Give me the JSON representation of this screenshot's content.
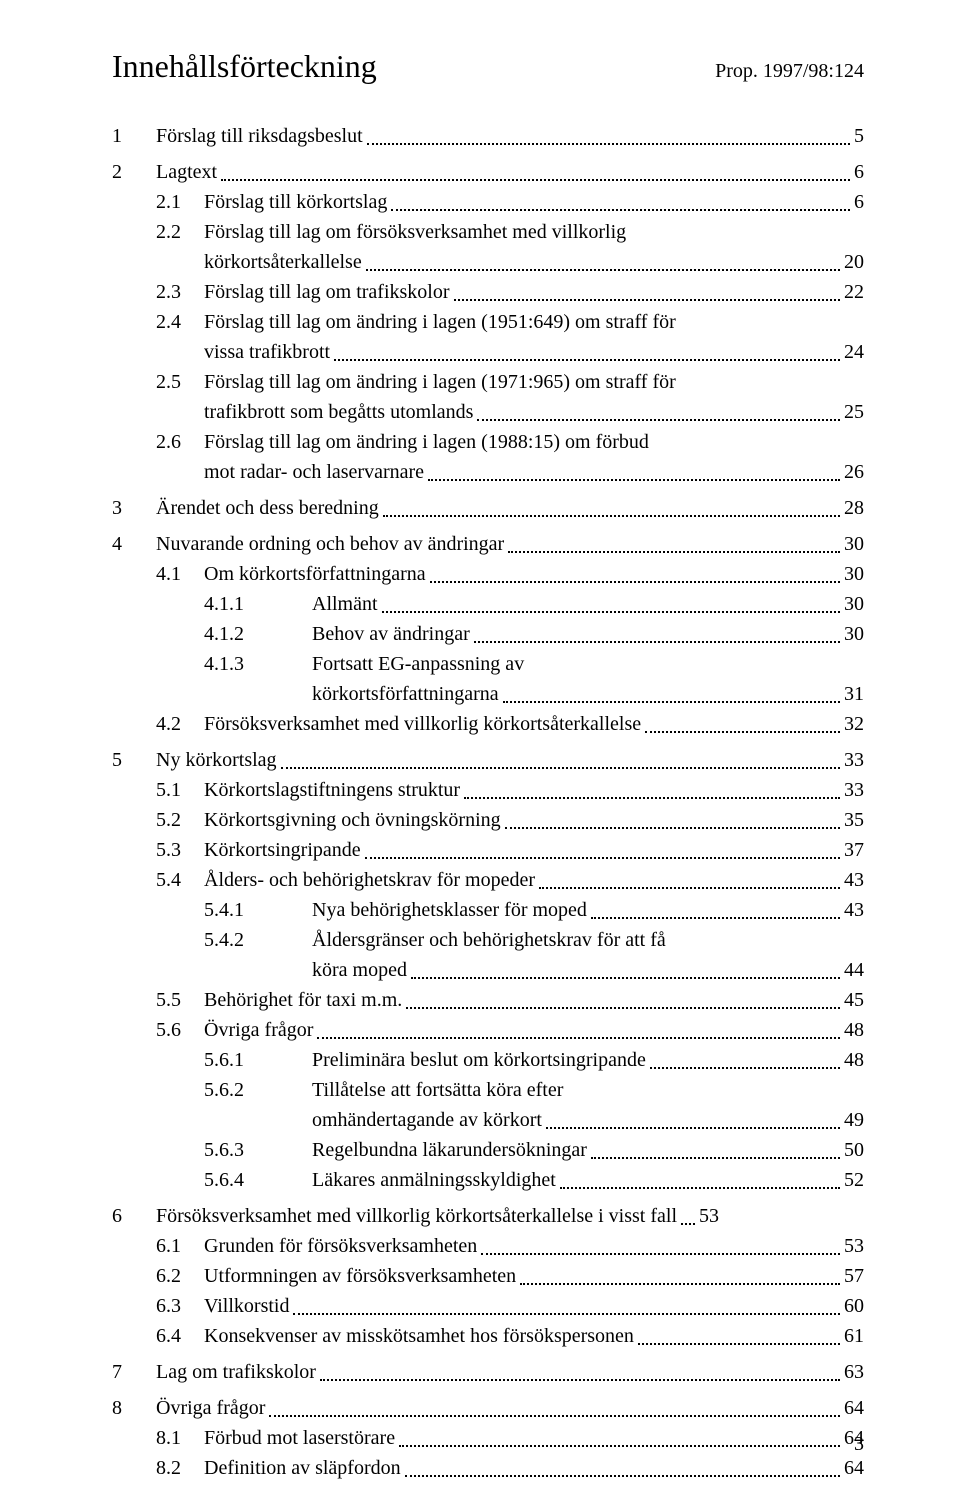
{
  "header": {
    "title": "Innehållsförteckning",
    "prop": "Prop. 1997/98:124"
  },
  "page_number": "3",
  "toc": [
    {
      "lvl": 0,
      "num": "1",
      "label": "Förslag till riksdagsbeslut",
      "page": "5",
      "gap_after": "sm"
    },
    {
      "lvl": 0,
      "num": "2",
      "label": "Lagtext",
      "page": "6"
    },
    {
      "lvl": 1,
      "num": "2.1",
      "label": "Förslag till körkortslag",
      "page": "6"
    },
    {
      "lvl": 1,
      "num": "2.2",
      "label": "Förslag till lag om försöksverksamhet med villkorlig",
      "cont": "körkortsåterkallelse",
      "page": "20"
    },
    {
      "lvl": 1,
      "num": "2.3",
      "label": "Förslag till lag om trafikskolor",
      "page": "22"
    },
    {
      "lvl": 1,
      "num": "2.4",
      "label": "Förslag till lag om ändring i lagen (1951:649) om straff för",
      "cont": "vissa trafikbrott",
      "page": "24"
    },
    {
      "lvl": 1,
      "num": "2.5",
      "label": "Förslag till lag om ändring i lagen (1971:965) om straff för",
      "cont": "trafikbrott som begåtts utomlands",
      "page": "25"
    },
    {
      "lvl": 1,
      "num": "2.6",
      "label": "Förslag till lag om ändring i lagen (1988:15) om förbud",
      "cont": "mot radar- och laservarnare",
      "page": "26",
      "gap_after": "sm"
    },
    {
      "lvl": 0,
      "num": "3",
      "label": "Ärendet och dess beredning",
      "page": "28",
      "gap_after": "sm"
    },
    {
      "lvl": 0,
      "num": "4",
      "label": "Nuvarande ordning och behov av ändringar",
      "page": "30"
    },
    {
      "lvl": 1,
      "num": "4.1",
      "label": "Om körkortsförfattningarna",
      "page": "30"
    },
    {
      "lvl": 2,
      "num": "4.1.1",
      "label": "Allmänt",
      "page": "30"
    },
    {
      "lvl": 2,
      "num": "4.1.2",
      "label": "Behov av ändringar",
      "page": "30"
    },
    {
      "lvl": 2,
      "num": "4.1.3",
      "label": "Fortsatt EG-anpassning av",
      "cont": "körkortsförfattningarna",
      "page": "31"
    },
    {
      "lvl": 1,
      "num": "4.2",
      "label": "Försöksverksamhet med villkorlig körkortsåterkallelse",
      "page": "32",
      "gap_after": "sm"
    },
    {
      "lvl": 0,
      "num": "5",
      "label": "Ny körkortslag",
      "page": "33"
    },
    {
      "lvl": 1,
      "num": "5.1",
      "label": "Körkortslagstiftningens struktur",
      "page": "33"
    },
    {
      "lvl": 1,
      "num": "5.2",
      "label": "Körkortsgivning och övningskörning",
      "page": "35"
    },
    {
      "lvl": 1,
      "num": "5.3",
      "label": "Körkortsingripande",
      "page": "37"
    },
    {
      "lvl": 1,
      "num": "5.4",
      "label": "Ålders- och behörighetskrav för mopeder",
      "page": "43"
    },
    {
      "lvl": 2,
      "num": "5.4.1",
      "label": "Nya behörighetsklasser för moped",
      "page": "43"
    },
    {
      "lvl": 2,
      "num": "5.4.2",
      "label": "Åldersgränser och behörighetskrav för att få",
      "cont": "köra moped",
      "page": "44"
    },
    {
      "lvl": 1,
      "num": "5.5",
      "label": "Behörighet för taxi m.m.",
      "page": "45"
    },
    {
      "lvl": 1,
      "num": "5.6",
      "label": "Övriga frågor",
      "page": "48"
    },
    {
      "lvl": 2,
      "num": "5.6.1",
      "label": "Preliminära beslut om körkortsingripande",
      "page": "48"
    },
    {
      "lvl": 2,
      "num": "5.6.2",
      "label": "Tillåtelse att fortsätta köra efter",
      "cont": "omhändertagande av körkort",
      "page": "49"
    },
    {
      "lvl": 2,
      "num": "5.6.3",
      "label": "Regelbundna läkarundersökningar",
      "page": "50"
    },
    {
      "lvl": 2,
      "num": "5.6.4",
      "label": "Läkares anmälningsskyldighet",
      "page": "52",
      "gap_after": "sm"
    },
    {
      "lvl": 0,
      "num": "6",
      "label": "Försöksverksamhet med villkorlig körkortsåterkallelse i visst fall",
      "page": "53",
      "short_leader": true
    },
    {
      "lvl": 1,
      "num": "6.1",
      "label": "Grunden för försöksverksamheten",
      "page": "53"
    },
    {
      "lvl": 1,
      "num": "6.2",
      "label": "Utformningen av försöksverksamheten",
      "page": "57"
    },
    {
      "lvl": 1,
      "num": "6.3",
      "label": "Villkorstid",
      "page": "60"
    },
    {
      "lvl": 1,
      "num": "6.4",
      "label": "Konsekvenser av misskötsamhet hos försökspersonen",
      "page": "61",
      "gap_after": "sm"
    },
    {
      "lvl": 0,
      "num": "7",
      "label": "Lag om trafikskolor",
      "page": "63",
      "gap_after": "sm"
    },
    {
      "lvl": 0,
      "num": "8",
      "label": "Övriga frågor",
      "page": "64"
    },
    {
      "lvl": 1,
      "num": "8.1",
      "label": "Förbud mot laserstörare",
      "page": "64"
    },
    {
      "lvl": 1,
      "num": "8.2",
      "label": "Definition av släpfordon",
      "page": "64"
    }
  ]
}
